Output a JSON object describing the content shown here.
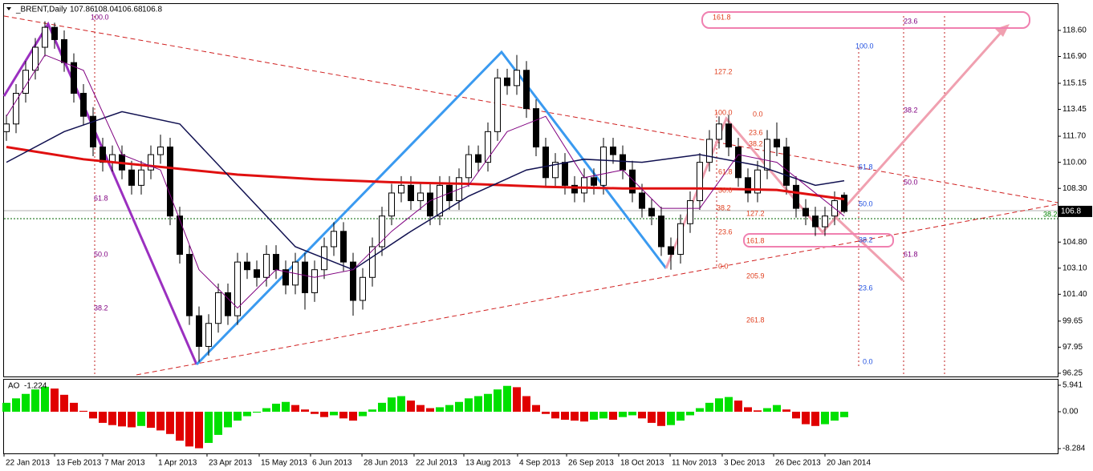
{
  "chart_data": [
    {
      "type": "candlestick",
      "title": "_BRENT,Daily",
      "open": [
        112.0,
        112.5,
        114.5,
        116.0,
        117.5,
        118.8,
        118.0,
        116.5,
        114.5,
        113.0,
        111.0,
        110.0,
        110.5,
        109.5,
        108.5,
        109.5,
        110.5,
        111.0,
        106.5,
        104.0,
        100.0,
        98.0,
        99.5,
        101.5,
        100.0,
        103.5,
        103.0,
        102.5,
        104.0,
        103.0,
        102.0,
        103.5,
        101.5,
        103.0,
        104.5,
        105.5,
        103.5,
        101.0,
        102.5,
        104.5,
        106.5,
        108.0,
        108.5,
        107.5,
        108.0,
        106.5,
        108.5,
        107.5,
        109.0,
        110.5,
        110.0,
        112.0,
        115.5,
        115.0,
        116.0,
        113.5,
        111.0,
        109.0,
        110.0,
        108.5,
        108.0,
        109.0,
        108.5,
        111.0,
        110.5,
        109.5,
        108.0,
        107.0,
        106.5,
        104.5,
        104.0,
        106.0,
        107.5,
        110.0,
        111.5,
        112.5,
        111.0,
        109.0,
        108.0,
        109.5,
        111.5,
        111.0,
        108.5,
        107.0,
        106.5,
        105.8,
        106.5,
        107.86
      ],
      "high": [
        113.1,
        115.1,
        116.6,
        118.1,
        119.2,
        119.1,
        118.6,
        117.1,
        115.1,
        113.6,
        111.6,
        111.1,
        111.1,
        110.1,
        110.1,
        111.1,
        111.8,
        111.6,
        107.1,
        104.6,
        100.6,
        100.1,
        102.1,
        102.1,
        104.1,
        104.1,
        103.6,
        104.6,
        104.6,
        103.6,
        104.1,
        104.1,
        103.6,
        105.1,
        106.1,
        106.1,
        104.1,
        103.1,
        105.1,
        107.1,
        108.6,
        109.1,
        109.1,
        108.6,
        108.6,
        109.1,
        109.1,
        109.6,
        111.1,
        111.1,
        112.6,
        116.1,
        116.1,
        117.0,
        116.6,
        114.1,
        111.6,
        110.6,
        110.6,
        109.1,
        109.6,
        109.6,
        111.6,
        111.6,
        111.1,
        110.1,
        108.6,
        107.6,
        107.1,
        105.1,
        106.6,
        108.1,
        110.6,
        112.1,
        113.0,
        113.1,
        111.6,
        109.6,
        110.1,
        112.1,
        112.6,
        111.6,
        109.1,
        107.6,
        107.1,
        107.1,
        108.1,
        108.04
      ],
      "low": [
        111.4,
        111.9,
        113.9,
        115.4,
        116.9,
        117.4,
        115.9,
        113.9,
        112.4,
        110.4,
        109.4,
        109.4,
        108.9,
        107.9,
        107.9,
        108.9,
        109.9,
        105.9,
        103.4,
        99.4,
        97.0,
        97.4,
        98.9,
        99.4,
        99.4,
        102.4,
        101.9,
        101.9,
        102.4,
        101.4,
        101.4,
        100.4,
        100.9,
        102.4,
        103.9,
        102.9,
        100.0,
        100.4,
        101.9,
        103.9,
        105.9,
        107.4,
        106.9,
        106.9,
        105.9,
        105.9,
        106.9,
        106.9,
        108.4,
        109.4,
        109.4,
        111.4,
        114.4,
        114.4,
        112.9,
        110.4,
        108.4,
        108.4,
        107.9,
        107.4,
        107.4,
        107.9,
        107.9,
        109.9,
        108.9,
        107.4,
        106.4,
        105.9,
        103.9,
        103.0,
        103.4,
        105.4,
        106.9,
        109.4,
        110.9,
        110.4,
        108.4,
        107.4,
        107.4,
        108.9,
        110.4,
        107.9,
        106.4,
        105.9,
        105.2,
        105.2,
        105.9,
        106.68
      ],
      "close": [
        112.5,
        114.5,
        116.0,
        117.5,
        118.8,
        118.0,
        116.5,
        114.5,
        113.0,
        111.0,
        110.0,
        110.5,
        109.5,
        108.5,
        109.5,
        110.5,
        111.0,
        106.5,
        104.0,
        100.0,
        98.0,
        99.5,
        101.5,
        100.0,
        103.5,
        103.0,
        102.5,
        104.0,
        103.0,
        102.0,
        103.5,
        101.5,
        103.0,
        104.5,
        105.5,
        103.5,
        101.0,
        102.5,
        104.5,
        106.5,
        108.0,
        108.5,
        107.5,
        108.0,
        106.5,
        108.5,
        107.5,
        109.0,
        110.5,
        110.0,
        112.0,
        115.5,
        115.0,
        116.0,
        113.5,
        111.0,
        109.0,
        110.0,
        108.5,
        108.0,
        109.0,
        108.5,
        111.0,
        110.5,
        109.5,
        108.0,
        107.0,
        106.5,
        104.5,
        104.0,
        106.0,
        107.5,
        110.0,
        111.5,
        112.5,
        111.0,
        109.0,
        108.0,
        109.5,
        111.5,
        111.0,
        108.5,
        107.0,
        106.5,
        105.8,
        106.5,
        107.5,
        106.8
      ],
      "ylim": [
        96.04,
        120.32
      ],
      "yticks": [
        96.25,
        97.95,
        99.65,
        {
          "value": 101.4,
          "label": "101.40"
        },
        {
          "value": 103.1,
          "label": "103.10"
        },
        {
          "value": 104.8,
          "label": "104.80"
        },
        {
          "value": 108.3,
          "label": "108.30"
        },
        {
          "value": 110,
          "label": "110.00"
        },
        {
          "value": 111.7,
          "label": "111.70"
        },
        113.45,
        115.15,
        {
          "value": 116.9,
          "label": "116.90"
        },
        {
          "value": 118.6,
          "label": "118.60"
        }
      ],
      "xticks": [
        {
          "value": -0.25,
          "label": "22 Jan 2013"
        },
        {
          "value": 5,
          "label": "13 Feb 2013"
        },
        {
          "value": 10,
          "label": "7 Mar 2013"
        },
        {
          "value": 15.58,
          "label": "1 Apr 2013"
        },
        {
          "value": 20.83,
          "label": "23 Apr 2013"
        },
        {
          "value": 26.25,
          "label": "15 May 2013"
        },
        {
          "value": 31.58,
          "label": "6 Jun 2013"
        },
        {
          "value": 36.92,
          "label": "28 Jun 2013"
        },
        {
          "value": 42.33,
          "label": "22 Jul 2013"
        },
        {
          "value": 47.5,
          "label": "13 Aug 2013"
        },
        {
          "value": 53.08,
          "label": "4 Sep 2013"
        },
        {
          "value": 58.17,
          "label": "26 Sep 2013"
        },
        {
          "value": 63.58,
          "label": "18 Oct 2013"
        },
        {
          "value": 68.92,
          "label": "11 Nov 2013"
        },
        {
          "value": 74.33,
          "label": "3 Dec 2013"
        },
        {
          "value": 79.67,
          "label": "26 Dec 2013"
        },
        {
          "value": 85,
          "label": "20 Jan 2014"
        }
      ],
      "up_color": "#ffffff",
      "down_color": "#000000",
      "overlays": [
        {
          "color": "#e01010",
          "width": 3,
          "x": [
            0,
            8,
            16,
            24,
            32,
            40,
            48,
            56,
            64,
            72,
            80,
            87
          ],
          "values": [
            111.0,
            110.2,
            109.7,
            109.2,
            108.9,
            108.7,
            108.6,
            108.4,
            108.3,
            108.3,
            108.2,
            107.6
          ]
        },
        {
          "color": "#101050",
          "width": 1.5,
          "x": [
            0,
            6,
            12,
            18,
            24,
            30,
            36,
            42,
            48,
            54,
            60,
            66,
            72,
            78,
            84,
            87
          ],
          "values": [
            110.0,
            112.0,
            113.3,
            112.5,
            108.5,
            104.5,
            103.0,
            105.5,
            107.8,
            109.5,
            110.2,
            110.0,
            110.5,
            109.8,
            108.5,
            108.8
          ]
        },
        {
          "color": "#800080",
          "width": 1,
          "x": [
            0,
            4,
            8,
            12,
            16,
            20,
            24,
            28,
            32,
            36,
            40,
            44,
            48,
            52,
            56,
            60,
            64,
            68,
            72,
            76,
            80,
            84,
            87
          ],
          "values": [
            113,
            117,
            116,
            110.5,
            109.5,
            103,
            100.5,
            103,
            102.5,
            103,
            105.5,
            107.5,
            108.5,
            112,
            113,
            109,
            109.5,
            107,
            107,
            110.5,
            110,
            108,
            106.5
          ]
        }
      ],
      "annotations": [
        {
          "text": "100.0",
          "color": "#800080"
        },
        {
          "text": "61.8",
          "color": "#800080"
        },
        {
          "text": "50.0",
          "color": "#800080"
        },
        {
          "text": "38.2",
          "color": "#800080"
        },
        {
          "text": "161.8",
          "color": "#e04020"
        },
        {
          "text": "127.2",
          "color": "#e04020"
        },
        {
          "text": "100.0",
          "color": "#e04020"
        },
        {
          "text": "0.0",
          "color": "#e04020"
        },
        {
          "text": "23.6",
          "color": "#e04020"
        },
        {
          "text": "38.2",
          "color": "#e04020"
        },
        {
          "text": "61.8",
          "color": "#e04020"
        },
        {
          "text": "50.0",
          "color": "#e04020"
        },
        {
          "text": "38.2",
          "color": "#e04020"
        },
        {
          "text": "127.2",
          "color": "#e04020"
        },
        {
          "text": "23.6",
          "color": "#e04020"
        },
        {
          "text": "161.8",
          "color": "#e04020"
        },
        {
          "text": "0.0",
          "color": "#e04020"
        },
        {
          "text": "205.9",
          "color": "#e04020"
        },
        {
          "text": "261.8",
          "color": "#e04020"
        },
        {
          "text": "100.0",
          "color": "#2050e0"
        },
        {
          "text": "61.8",
          "color": "#2050e0"
        },
        {
          "text": "50.0",
          "color": "#2050e0"
        },
        {
          "text": "38.2",
          "color": "#2050e0"
        },
        {
          "text": "23.6",
          "color": "#2050e0"
        },
        {
          "text": "0.0",
          "color": "#2050e0"
        },
        {
          "text": "23.6",
          "color": "#800080"
        },
        {
          "text": "38.2",
          "color": "#800080"
        },
        {
          "text": "50.0",
          "color": "#800080"
        },
        {
          "text": "61.8",
          "color": "#800080"
        },
        {
          "text": "38.2",
          "color": "#008000"
        }
      ]
    },
    {
      "type": "bar",
      "title": "AO",
      "values": [
        2.0,
        3.0,
        4.0,
        5.0,
        5.6,
        5.2,
        3.8,
        2.0,
        0.2,
        -1.5,
        -2.5,
        -3.0,
        -3.3,
        -3.5,
        -3.2,
        -3.6,
        -4.2,
        -5.0,
        -6.5,
        -7.8,
        -8.2,
        -7.0,
        -5.2,
        -3.5,
        -2.0,
        -1.0,
        -0.2,
        0.8,
        1.8,
        2.2,
        1.5,
        0.5,
        -0.5,
        -1.2,
        -0.8,
        -1.5,
        -2.0,
        -1.0,
        0.5,
        2.0,
        3.2,
        3.5,
        2.5,
        1.5,
        0.8,
        1.0,
        1.5,
        2.2,
        3.0,
        3.5,
        4.0,
        5.0,
        5.8,
        5.5,
        3.5,
        1.5,
        -0.5,
        -1.5,
        -1.8,
        -2.0,
        -2.2,
        -1.8,
        -1.5,
        -1.8,
        -1.2,
        -0.8,
        -1.5,
        -2.5,
        -3.2,
        -3.0,
        -2.0,
        -0.8,
        0.8,
        2.0,
        3.0,
        3.3,
        2.5,
        1.0,
        0.3,
        0.8,
        1.5,
        0.5,
        -1.5,
        -2.8,
        -3.2,
        -2.8,
        -2.0,
        -1.224
      ],
      "ylim": [
        -9.35,
        7.19
      ],
      "yticks": [
        5.941,
        {
          "value": 0,
          "label": "0.00"
        },
        -8.284
      ],
      "up_color": "#00e000",
      "down_color": "#e00000"
    }
  ]
}
